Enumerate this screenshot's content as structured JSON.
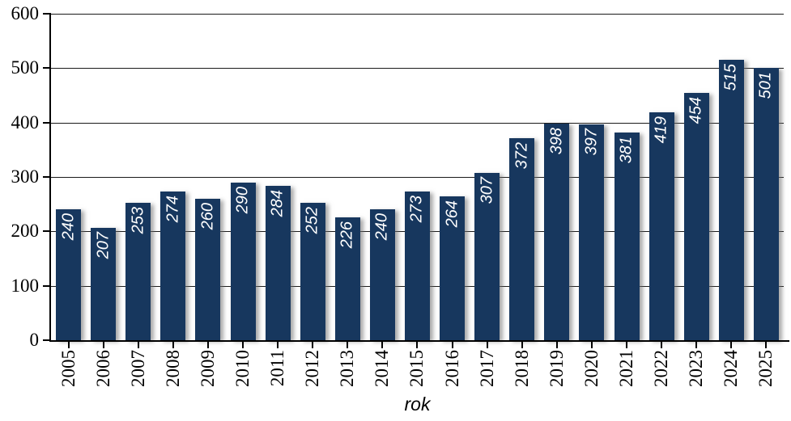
{
  "chart_data": {
    "type": "bar",
    "title": "",
    "xlabel": "rok",
    "ylabel": "",
    "categories": [
      "2005",
      "2006",
      "2007",
      "2008",
      "2009",
      "2010",
      "2011",
      "2012",
      "2013",
      "2014",
      "2015",
      "2016",
      "2017",
      "2018",
      "2019",
      "2020",
      "2021",
      "2022",
      "2023",
      "2024",
      "2025"
    ],
    "values": [
      240,
      207,
      253,
      274,
      260,
      290,
      284,
      252,
      226,
      240,
      273,
      264,
      307,
      372,
      398,
      397,
      381,
      419,
      454,
      515,
      501
    ],
    "ylim": [
      0,
      600
    ],
    "yticks": [
      0,
      100,
      200,
      300,
      400,
      500,
      600
    ],
    "grid": true,
    "legend": false,
    "bar_color": "#17375E",
    "bar_label_color": "#FFFFFF",
    "axis_color": "#000000",
    "gridline_color": "#1A1A1A"
  }
}
